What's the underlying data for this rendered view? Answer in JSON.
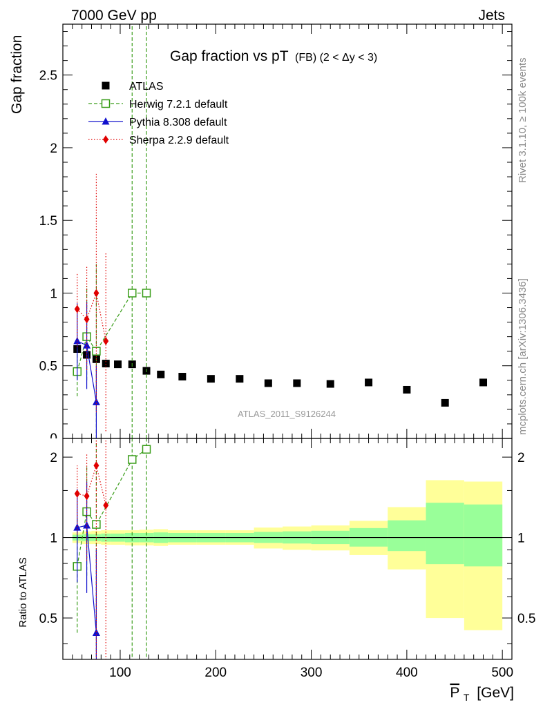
{
  "header": {
    "left": "7000 GeV pp",
    "right": "Jets",
    "rivet": "Rivet 3.1.10, ≥ 100k events",
    "mcplots": "mcplots.cern.ch [arXiv:1306.3436]",
    "analysis": "ATLAS_2011_S9126244"
  },
  "chart_data": [
    {
      "type": "scatter",
      "panel": "main",
      "title_main": "Gap fraction vs pT",
      "title_sub": "(FB) (2 < Δy < 3)",
      "ylabel": "Gap fraction",
      "xlabel": "",
      "xlim": [
        40,
        510
      ],
      "ylim": [
        0,
        2.85
      ],
      "yticks": [
        0.5,
        1,
        1.5,
        2,
        2.5
      ],
      "ytick_labels": [
        "0.5",
        "1",
        "1.5",
        "2",
        "2.5"
      ],
      "legend_position": "top-left",
      "series": [
        {
          "name": "ATLAS",
          "color": "#000000",
          "marker": "square-filled",
          "line": "none",
          "points": [
            {
              "x": 55,
              "y": 0.615
            },
            {
              "x": 65,
              "y": 0.575
            },
            {
              "x": 75,
              "y": 0.545
            },
            {
              "x": 85,
              "y": 0.515
            },
            {
              "x": 97.5,
              "y": 0.51
            },
            {
              "x": 112.5,
              "y": 0.51
            },
            {
              "x": 127.5,
              "y": 0.465
            },
            {
              "x": 142.5,
              "y": 0.44
            },
            {
              "x": 165,
              "y": 0.425
            },
            {
              "x": 195,
              "y": 0.41
            },
            {
              "x": 225,
              "y": 0.41
            },
            {
              "x": 255,
              "y": 0.38
            },
            {
              "x": 285,
              "y": 0.38
            },
            {
              "x": 320,
              "y": 0.375
            },
            {
              "x": 360,
              "y": 0.385
            },
            {
              "x": 400,
              "y": 0.335
            },
            {
              "x": 440,
              "y": 0.245
            },
            {
              "x": 480,
              "y": 0.385
            }
          ]
        },
        {
          "name": "Herwig 7.2.1 default",
          "color": "#3a9d1a",
          "marker": "square-open",
          "line": "dashed",
          "points": [
            {
              "x": 55,
              "y": 0.46,
              "lo": 0.29,
              "hi": 0.63
            },
            {
              "x": 65,
              "y": 0.7,
              "lo": 0.4,
              "hi": 1.05
            },
            {
              "x": 75,
              "y": 0.6,
              "lo": 0.0,
              "hi": 1.2
            },
            {
              "x": 112.5,
              "y": 1.0,
              "lo": 0.0,
              "hi": 2.85
            },
            {
              "x": 127.5,
              "y": 1.0,
              "lo": 0.0,
              "hi": 2.85
            }
          ]
        },
        {
          "name": "Pythia 8.308 default",
          "color": "#1010cc",
          "marker": "triangle-filled",
          "line": "solid",
          "points": [
            {
              "x": 55,
              "y": 0.67,
              "lo": 0.4,
              "hi": 0.93
            },
            {
              "x": 65,
              "y": 0.64,
              "lo": 0.34,
              "hi": 0.94
            },
            {
              "x": 75,
              "y": 0.25,
              "lo": 0.0,
              "hi": 0.5
            }
          ]
        },
        {
          "name": "Sherpa 2.2.9 default",
          "color": "#e00000",
          "marker": "diamond-filled",
          "line": "dotted",
          "points": [
            {
              "x": 55,
              "y": 0.89,
              "lo": 0.63,
              "hi": 1.14
            },
            {
              "x": 65,
              "y": 0.82,
              "lo": 0.47,
              "hi": 1.18
            },
            {
              "x": 75,
              "y": 1.0,
              "lo": 0.18,
              "hi": 1.82
            },
            {
              "x": 85,
              "y": 0.67,
              "lo": 0.05,
              "hi": 1.28
            }
          ]
        }
      ]
    },
    {
      "type": "scatter",
      "panel": "ratio",
      "ylabel": "Ratio to ATLAS",
      "xlabel": "P_T [GeV]",
      "xlabel_main": "P",
      "xlabel_sub": "T",
      "xlabel_unit": "[GeV]",
      "xlim": [
        40,
        510
      ],
      "ylim": [
        0.35,
        2.35
      ],
      "yscale": "log",
      "xticks": [
        100,
        200,
        300,
        400,
        500
      ],
      "xtick_labels": [
        "100",
        "200",
        "300",
        "400",
        "500"
      ],
      "yticks": [
        0.5,
        1,
        2
      ],
      "ytick_labels": [
        "0.5",
        "1",
        "2"
      ],
      "reference_line": 1,
      "bands": [
        {
          "x0": 50,
          "x1": 60,
          "stat": [
            0.975,
            1.025
          ],
          "total": [
            0.955,
            1.045
          ]
        },
        {
          "x0": 60,
          "x1": 70,
          "stat": [
            0.97,
            1.03
          ],
          "total": [
            0.945,
            1.055
          ]
        },
        {
          "x0": 70,
          "x1": 80,
          "stat": [
            0.97,
            1.03
          ],
          "total": [
            0.945,
            1.06
          ]
        },
        {
          "x0": 80,
          "x1": 90,
          "stat": [
            0.965,
            1.035
          ],
          "total": [
            0.94,
            1.065
          ]
        },
        {
          "x0": 90,
          "x1": 105,
          "stat": [
            0.965,
            1.035
          ],
          "total": [
            0.94,
            1.065
          ]
        },
        {
          "x0": 105,
          "x1": 120,
          "stat": [
            0.96,
            1.04
          ],
          "total": [
            0.935,
            1.065
          ]
        },
        {
          "x0": 120,
          "x1": 135,
          "stat": [
            0.96,
            1.04
          ],
          "total": [
            0.935,
            1.07
          ]
        },
        {
          "x0": 135,
          "x1": 150,
          "stat": [
            0.955,
            1.045
          ],
          "total": [
            0.93,
            1.075
          ]
        },
        {
          "x0": 150,
          "x1": 180,
          "stat": [
            0.96,
            1.04
          ],
          "total": [
            0.94,
            1.065
          ]
        },
        {
          "x0": 180,
          "x1": 210,
          "stat": [
            0.96,
            1.04
          ],
          "total": [
            0.94,
            1.065
          ]
        },
        {
          "x0": 210,
          "x1": 240,
          "stat": [
            0.96,
            1.04
          ],
          "total": [
            0.94,
            1.065
          ]
        },
        {
          "x0": 240,
          "x1": 270,
          "stat": [
            0.955,
            1.05
          ],
          "total": [
            0.91,
            1.09
          ]
        },
        {
          "x0": 270,
          "x1": 300,
          "stat": [
            0.95,
            1.055
          ],
          "total": [
            0.9,
            1.1
          ]
        },
        {
          "x0": 300,
          "x1": 340,
          "stat": [
            0.945,
            1.06
          ],
          "total": [
            0.895,
            1.11
          ]
        },
        {
          "x0": 340,
          "x1": 380,
          "stat": [
            0.925,
            1.085
          ],
          "total": [
            0.86,
            1.155
          ]
        },
        {
          "x0": 380,
          "x1": 420,
          "stat": [
            0.89,
            1.16
          ],
          "total": [
            0.76,
            1.3
          ]
        },
        {
          "x0": 420,
          "x1": 460,
          "stat": [
            0.795,
            1.35
          ],
          "total": [
            0.5,
            1.64
          ]
        },
        {
          "x0": 460,
          "x1": 500,
          "stat": [
            0.78,
            1.33
          ],
          "total": [
            0.45,
            1.62
          ]
        }
      ],
      "series": [
        {
          "name": "Herwig 7.2.1 default",
          "color": "#3a9d1a",
          "marker": "square-open",
          "line": "dashed",
          "points": [
            {
              "x": 55,
              "y": 0.78,
              "lo": 0.44,
              "hi": 1.18
            },
            {
              "x": 65,
              "y": 1.25,
              "lo": 0.72,
              "hi": 1.85
            },
            {
              "x": 75,
              "y": 1.12,
              "lo": 0.0,
              "hi": 2.3
            },
            {
              "x": 112.5,
              "y": 1.96,
              "lo": 0.0,
              "hi": 2.35
            },
            {
              "x": 127.5,
              "y": 2.14,
              "lo": 0.0,
              "hi": 2.35
            }
          ]
        },
        {
          "name": "Pythia 8.308 default",
          "color": "#1010cc",
          "marker": "triangle-filled",
          "line": "solid",
          "points": [
            {
              "x": 55,
              "y": 1.09,
              "lo": 0.68,
              "hi": 1.52
            },
            {
              "x": 65,
              "y": 1.11,
              "lo": 0.62,
              "hi": 1.62
            },
            {
              "x": 75,
              "y": 0.44,
              "lo": 0.0,
              "hi": 0.9
            }
          ]
        },
        {
          "name": "Sherpa 2.2.9 default",
          "color": "#e00000",
          "marker": "diamond-filled",
          "line": "dotted",
          "points": [
            {
              "x": 55,
              "y": 1.46,
              "lo": 1.02,
              "hi": 1.86
            },
            {
              "x": 65,
              "y": 1.43,
              "lo": 0.82,
              "hi": 2.05
            },
            {
              "x": 75,
              "y": 1.86,
              "lo": 0.0,
              "hi": 2.35
            },
            {
              "x": 85,
              "y": 1.32,
              "lo": 0.0,
              "hi": 2.35
            }
          ]
        }
      ]
    }
  ]
}
